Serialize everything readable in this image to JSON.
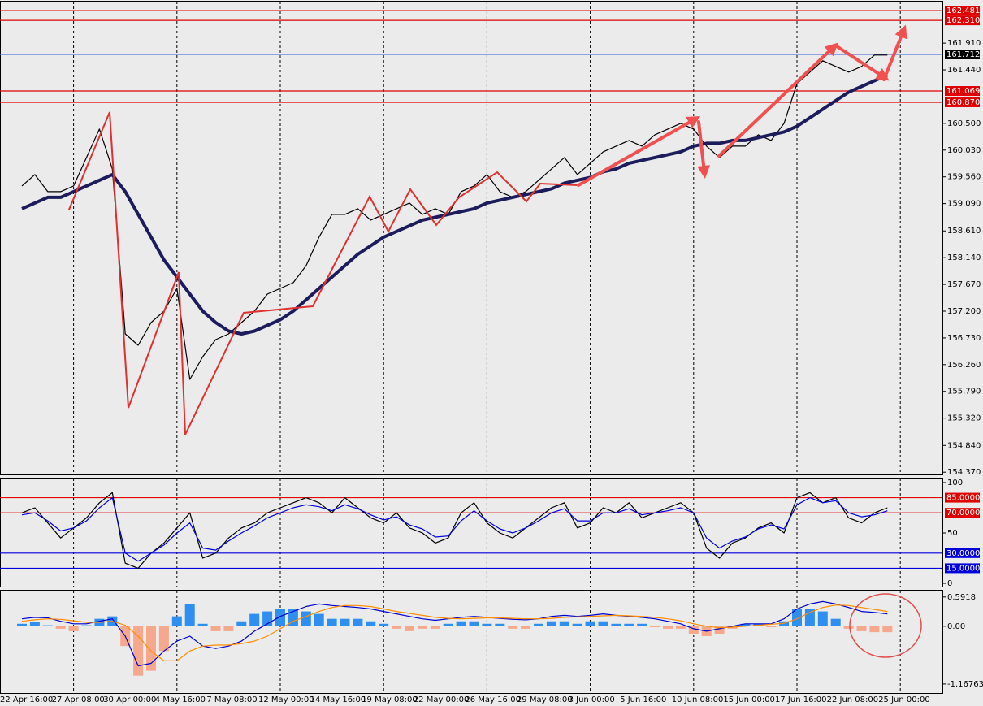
{
  "chart_data": [
    {
      "type": "line",
      "categories": [
        "22 Apr 16:00",
        null,
        null,
        null,
        "27 Apr 08:00",
        null,
        null,
        null,
        "30 Apr 00:00",
        null,
        null,
        null,
        "4 May 16:00",
        null,
        null,
        null,
        "7 May 08:00",
        null,
        null,
        null,
        "12 May 00:00",
        null,
        null,
        null,
        "14 May 16:00",
        null,
        null,
        null,
        "19 May 08:00",
        null,
        null,
        null,
        "22 May 00:00",
        null,
        null,
        null,
        "26 May 16:00",
        null,
        null,
        null,
        "29 May 08:00",
        null,
        null,
        null,
        "3 Jun 00:00",
        null,
        null,
        null,
        "5 Jun 16:00",
        null,
        null,
        null,
        "10 Jun 08:00",
        null,
        null,
        null,
        "15 Jun 00:00",
        null,
        null,
        null,
        "17 Jun 16:00",
        null,
        null,
        null,
        "22 Jun 08:00",
        null,
        null,
        null,
        "25 Jun 00:00"
      ],
      "series": [
        {
          "color": "#000000",
          "values": [
            159.4,
            159.6,
            159.3,
            159.3,
            159.4,
            159.9,
            160.4,
            159.7,
            156.8,
            156.6,
            157.0,
            157.2,
            157.6,
            156.0,
            156.4,
            156.7,
            156.8,
            157.0,
            157.2,
            157.5,
            157.6,
            157.7,
            158.0,
            158.5,
            158.9,
            158.9,
            159.0,
            158.8,
            158.9,
            159.0,
            159.1,
            158.9,
            159.0,
            158.9,
            159.3,
            159.4,
            159.6,
            159.3,
            159.2,
            159.3,
            159.5,
            159.7,
            159.9,
            159.6,
            159.8,
            160.0,
            160.1,
            160.2,
            160.1,
            160.3,
            160.4,
            160.5,
            160.4,
            160.1,
            159.9,
            160.1,
            160.1,
            160.3,
            160.2,
            160.5,
            161.2,
            161.4,
            161.6,
            161.5,
            161.4,
            161.5,
            161.7,
            161.7,
            null
          ]
        },
        {
          "color": "#1c1c5c",
          "values": [
            159.0,
            159.1,
            159.2,
            159.2,
            159.3,
            159.4,
            159.5,
            159.6,
            159.3,
            158.9,
            158.5,
            158.1,
            157.8,
            157.5,
            157.2,
            157.0,
            156.85,
            156.8,
            156.85,
            156.95,
            157.05,
            157.2,
            157.4,
            157.6,
            157.8,
            158.0,
            158.2,
            158.35,
            158.5,
            158.6,
            158.7,
            158.8,
            158.85,
            158.9,
            158.95,
            159.0,
            159.1,
            159.15,
            159.2,
            159.25,
            159.3,
            159.35,
            159.45,
            159.5,
            159.55,
            159.65,
            159.7,
            159.8,
            159.85,
            159.9,
            159.95,
            160.0,
            160.1,
            160.15,
            160.15,
            160.2,
            160.2,
            160.25,
            160.3,
            160.35,
            160.45,
            160.6,
            160.75,
            160.9,
            161.05,
            161.15,
            161.25,
            161.35,
            null
          ]
        }
      ],
      "ylim": [
        154.33,
        162.64
      ],
      "yticks": [
        {
          "value": 161.91,
          "label": "161.910"
        },
        {
          "value": 161.44,
          "label": "161.440"
        },
        {
          "value": 160.5,
          "label": "160.500"
        },
        {
          "value": 160.03,
          "label": "160.030"
        },
        {
          "value": 159.56,
          "label": "159.560"
        },
        {
          "value": 159.09,
          "label": "159.090"
        },
        {
          "value": 158.61,
          "label": "158.610"
        },
        {
          "value": 158.14,
          "label": "158.140"
        },
        {
          "value": 157.67,
          "label": "157.670"
        },
        {
          "value": 157.2,
          "label": "157.200"
        },
        {
          "value": 156.73,
          "label": "156.730"
        },
        {
          "value": 156.26,
          "label": "156.260"
        },
        {
          "value": 155.79,
          "label": "155.790"
        },
        {
          "value": 155.32,
          "label": "155.320"
        },
        {
          "value": 154.84,
          "label": "154.840"
        },
        {
          "value": 154.37,
          "label": "154.370"
        }
      ],
      "levels": [
        {
          "value": 162.481,
          "label_bg": "#e00000",
          "color": "#e00000"
        },
        {
          "value": 162.31,
          "label": "162.310",
          "label_bg": "#e00000",
          "color": "#e00000"
        },
        {
          "value": 161.712,
          "label_bg": "#000000",
          "color": "#5577dd"
        },
        {
          "value": 161.069,
          "label_bg": "#e00000",
          "color": "#e00000"
        },
        {
          "value": 160.87,
          "label": "160.870",
          "label_bg": "#e00000",
          "color": "#e00000"
        }
      ],
      "x_grid": true
    },
    {
      "type": "line",
      "series": [
        {
          "color": "#000000",
          "values": [
            70,
            75,
            60,
            45,
            55,
            65,
            80,
            90,
            20,
            15,
            30,
            40,
            55,
            70,
            25,
            30,
            45,
            55,
            60,
            70,
            75,
            80,
            85,
            80,
            70,
            85,
            75,
            65,
            60,
            70,
            55,
            50,
            40,
            45,
            70,
            80,
            60,
            50,
            45,
            55,
            65,
            75,
            80,
            55,
            60,
            75,
            70,
            80,
            65,
            70,
            75,
            80,
            70,
            35,
            25,
            40,
            45,
            55,
            60,
            50,
            85,
            90,
            80,
            85,
            65,
            60,
            70,
            75,
            null
          ]
        },
        {
          "color": "#0000dd",
          "values": [
            68,
            70,
            62,
            52,
            55,
            62,
            75,
            85,
            30,
            22,
            30,
            38,
            50,
            60,
            35,
            33,
            42,
            50,
            57,
            65,
            70,
            75,
            78,
            76,
            72,
            78,
            74,
            68,
            63,
            66,
            58,
            54,
            46,
            47,
            62,
            72,
            62,
            54,
            50,
            55,
            62,
            70,
            74,
            62,
            62,
            70,
            70,
            74,
            68,
            70,
            72,
            75,
            70,
            45,
            35,
            42,
            46,
            54,
            58,
            54,
            78,
            85,
            80,
            82,
            70,
            66,
            68,
            72,
            null
          ]
        }
      ],
      "ylim": [
        -3.2,
        104
      ],
      "yticks": [
        100,
        50,
        0
      ],
      "levels": [
        {
          "value": 85,
          "label": "85.0000",
          "label_bg": "#e00000",
          "color": "#e00000"
        },
        {
          "value": 70,
          "label": "70.0000",
          "label_bg": "#e00000",
          "color": "#e00000"
        },
        {
          "value": 30,
          "label": "30.0000",
          "label_bg": "#0000dd",
          "color": "#0000dd"
        },
        {
          "value": 15,
          "label": "15.0000",
          "label_bg": "#0000dd",
          "color": "#0000dd"
        }
      ]
    },
    {
      "type": "macd",
      "series": [
        {
          "color": "#2e8ff0",
          "negative_color": "#f6a88c",
          "kind": "bar",
          "values": [
            0.05,
            0.08,
            0.02,
            -0.05,
            -0.1,
            0.02,
            0.15,
            0.2,
            -0.4,
            -1.0,
            -0.9,
            -0.5,
            0.2,
            0.45,
            0.05,
            -0.1,
            -0.1,
            0.1,
            0.25,
            0.3,
            0.35,
            0.35,
            0.3,
            0.25,
            0.15,
            0.15,
            0.15,
            0.1,
            0.05,
            -0.05,
            -0.1,
            -0.05,
            -0.05,
            0.05,
            0.1,
            0.1,
            0.05,
            0.05,
            -0.05,
            -0.05,
            0.05,
            0.1,
            0.1,
            0.05,
            0.1,
            0.1,
            0.05,
            0.05,
            0.05,
            -0.02,
            -0.05,
            -0.05,
            -0.15,
            -0.2,
            -0.15,
            -0.05,
            0.05,
            0.05,
            -0.02,
            0.1,
            0.35,
            0.35,
            0.3,
            0.15,
            -0.05,
            -0.1,
            -0.12,
            -0.12,
            null
          ]
        },
        {
          "color": "#0000cc",
          "kind": "line",
          "values": [
            0.15,
            0.18,
            0.17,
            0.1,
            0.05,
            0.05,
            0.1,
            0.15,
            -0.2,
            -0.8,
            -0.75,
            -0.5,
            -0.3,
            -0.2,
            -0.4,
            -0.45,
            -0.4,
            -0.3,
            -0.1,
            0.05,
            0.2,
            0.3,
            0.4,
            0.45,
            0.42,
            0.4,
            0.38,
            0.35,
            0.3,
            0.25,
            0.2,
            0.15,
            0.12,
            0.15,
            0.18,
            0.2,
            0.18,
            0.16,
            0.14,
            0.13,
            0.15,
            0.2,
            0.22,
            0.2,
            0.22,
            0.25,
            0.22,
            0.2,
            0.18,
            0.15,
            0.1,
            0.05,
            -0.05,
            -0.1,
            -0.05,
            0.0,
            0.05,
            0.05,
            0.05,
            0.15,
            0.35,
            0.45,
            0.5,
            0.45,
            0.38,
            0.3,
            0.28,
            0.25,
            null
          ]
        },
        {
          "color": "#ff8c00",
          "kind": "line",
          "values": [
            0.1,
            0.13,
            0.15,
            0.14,
            0.11,
            0.08,
            0.08,
            0.1,
            0.02,
            -0.2,
            -0.5,
            -0.7,
            -0.7,
            -0.5,
            -0.4,
            -0.38,
            -0.38,
            -0.35,
            -0.3,
            -0.2,
            -0.05,
            0.1,
            0.2,
            0.3,
            0.38,
            0.42,
            0.42,
            0.4,
            0.35,
            0.3,
            0.26,
            0.22,
            0.18,
            0.16,
            0.15,
            0.16,
            0.17,
            0.17,
            0.16,
            0.15,
            0.15,
            0.16,
            0.18,
            0.19,
            0.2,
            0.21,
            0.22,
            0.21,
            0.2,
            0.18,
            0.15,
            0.11,
            0.05,
            0.0,
            -0.03,
            -0.02,
            0.0,
            0.02,
            0.04,
            0.06,
            0.15,
            0.28,
            0.38,
            0.43,
            0.42,
            0.38,
            0.34,
            0.3,
            null
          ]
        }
      ],
      "ylim": [
        -1.35,
        0.72
      ],
      "yticks": [
        0.5918,
        {
          "value": 0,
          "label": "0.00"
        },
        -1.16763
      ]
    }
  ]
}
